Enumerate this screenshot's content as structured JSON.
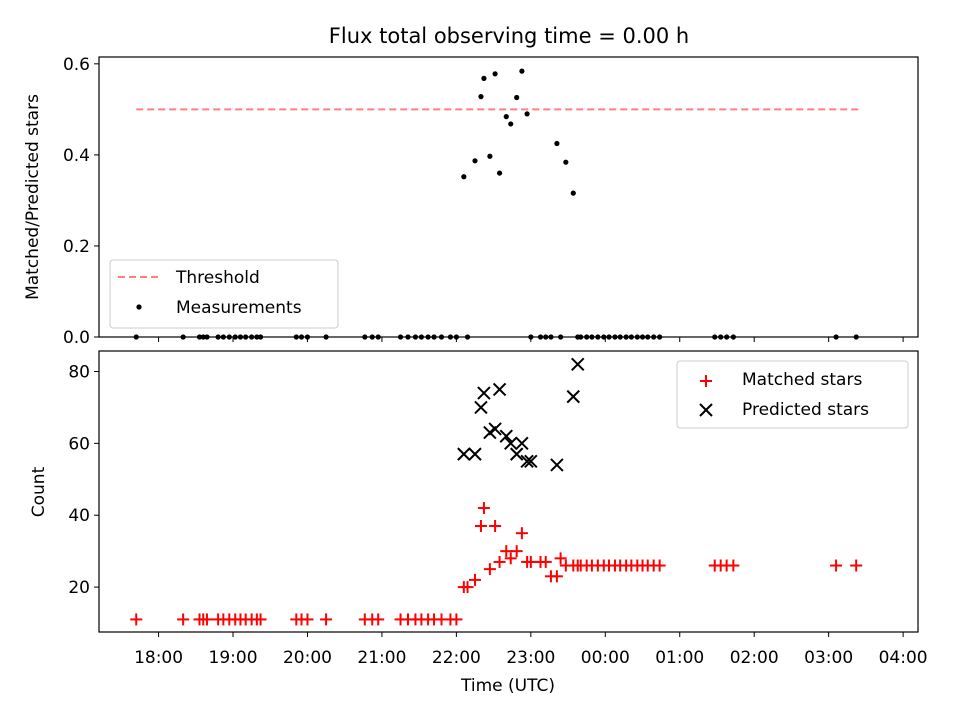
{
  "figure": {
    "title": "Flux total observing time = 0.00 h"
  },
  "chart_data": [
    {
      "type": "scatter",
      "title": "Flux total observing time = 0.00 h",
      "xlabel": "",
      "ylabel": "Matched/Predicted stars",
      "xlim": [
        -0.55,
        10.45
      ],
      "ylim": [
        0,
        0.615
      ],
      "yticks": [
        0.0,
        0.2,
        0.4,
        0.6
      ],
      "ytick_labels": [
        "0.0",
        "0.2",
        "0.4",
        "0.6"
      ],
      "legend": {
        "placement": "lower-left",
        "entries": [
          "Threshold",
          "Measurements"
        ]
      },
      "series": [
        {
          "name": "Threshold",
          "kind": "dashed-line",
          "color": "#ff7f7f",
          "x": [
            -0.05,
            9.65
          ],
          "y": [
            0.5,
            0.5
          ]
        },
        {
          "name": "Measurements",
          "kind": "dot",
          "color": "#000000",
          "x": [
            -0.05,
            0.58,
            0.8,
            0.85,
            0.9,
            1.05,
            1.12,
            1.2,
            1.28,
            1.35,
            1.42,
            1.5,
            1.57,
            1.62,
            2.1,
            2.17,
            2.25,
            2.5,
            3.02,
            3.12,
            3.2,
            3.5,
            3.6,
            3.7,
            3.78,
            3.87,
            3.95,
            4.05,
            4.17,
            4.25,
            4.4,
            4.35,
            4.5,
            4.58,
            4.62,
            4.7,
            4.77,
            4.83,
            4.92,
            4.98,
            5.06,
            5.13,
            5.2,
            5.25,
            5.38,
            5.45,
            5.52,
            5.6,
            5.65,
            5.72,
            5.82,
            5.88,
            5.92,
            6.0,
            6.07,
            6.15,
            6.23,
            6.3,
            6.38,
            6.45,
            6.53,
            6.6,
            6.68,
            6.75,
            6.82,
            6.9,
            6.98,
            7.72,
            7.8,
            7.88,
            7.97,
            9.35,
            9.62
          ],
          "y": [
            0,
            0,
            0,
            0,
            0,
            0,
            0,
            0,
            0,
            0,
            0,
            0,
            0,
            0,
            0,
            0,
            0,
            0,
            0,
            0,
            0,
            0,
            0,
            0,
            0,
            0,
            0,
            0,
            0,
            0,
            0,
            0.352,
            0.387,
            0.528,
            0.568,
            0.397,
            0.578,
            0.36,
            0.484,
            0.468,
            0.526,
            0.584,
            0.49,
            0,
            0,
            0,
            0,
            0.425,
            0,
            0.384,
            0.316,
            0,
            0,
            0,
            0,
            0,
            0,
            0,
            0,
            0,
            0,
            0,
            0,
            0,
            0,
            0,
            0,
            0,
            0,
            0,
            0,
            0,
            0
          ]
        }
      ]
    },
    {
      "type": "scatter",
      "title": "",
      "xlabel": "Time (UTC)",
      "ylabel": "Count",
      "xlim": [
        -0.55,
        10.45
      ],
      "ylim": [
        7.5,
        85.7
      ],
      "xticks": [
        0.25,
        1.25,
        2.25,
        3.25,
        4.25,
        5.25,
        6.25,
        7.25,
        8.25,
        9.25,
        10.25
      ],
      "xtick_labels": [
        "18:00",
        "19:00",
        "20:00",
        "21:00",
        "22:00",
        "23:00",
        "00:00",
        "01:00",
        "02:00",
        "03:00",
        "04:00"
      ],
      "yticks": [
        20,
        40,
        60,
        80
      ],
      "ytick_labels": [
        "20",
        "40",
        "60",
        "80"
      ],
      "legend": {
        "placement": "upper-right",
        "entries": [
          "Matched stars",
          "Predicted stars"
        ]
      },
      "series": [
        {
          "name": "Matched stars",
          "kind": "plus",
          "color": "#ff0000",
          "x": [
            -0.05,
            0.58,
            0.8,
            0.85,
            0.9,
            1.05,
            1.12,
            1.2,
            1.28,
            1.35,
            1.42,
            1.5,
            1.57,
            1.62,
            2.1,
            2.17,
            2.25,
            2.5,
            3.02,
            3.12,
            3.2,
            3.5,
            3.6,
            3.7,
            3.78,
            3.87,
            3.95,
            4.05,
            4.17,
            4.25,
            4.35,
            4.4,
            4.5,
            4.58,
            4.62,
            4.7,
            4.77,
            4.83,
            4.92,
            4.98,
            5.06,
            5.13,
            5.2,
            5.25,
            5.38,
            5.45,
            5.52,
            5.6,
            5.65,
            5.72,
            5.82,
            5.88,
            5.92,
            6.0,
            6.07,
            6.15,
            6.23,
            6.3,
            6.38,
            6.45,
            6.53,
            6.6,
            6.68,
            6.75,
            6.82,
            6.9,
            6.98,
            7.72,
            7.8,
            7.88,
            7.97,
            9.35,
            9.62
          ],
          "y": [
            11,
            11,
            11,
            11,
            11,
            11,
            11,
            11,
            11,
            11,
            11,
            11,
            11,
            11,
            11,
            11,
            11,
            11,
            11,
            11,
            11,
            11,
            11,
            11,
            11,
            11,
            11,
            11,
            11,
            11,
            20,
            20,
            22,
            37,
            42,
            25,
            37,
            27,
            30,
            28,
            30,
            35,
            27,
            27,
            27,
            27,
            23,
            23,
            28,
            26,
            26,
            26,
            26,
            26,
            26,
            26,
            26,
            26,
            26,
            26,
            26,
            26,
            26,
            26,
            26,
            26,
            26,
            26,
            26,
            26,
            26,
            26,
            26
          ]
        },
        {
          "name": "Predicted stars",
          "kind": "x",
          "color": "#000000",
          "x": [
            4.35,
            4.5,
            4.58,
            4.62,
            4.7,
            4.77,
            4.83,
            4.92,
            4.98,
            5.06,
            5.13,
            5.2,
            5.25,
            5.6,
            5.82,
            5.88
          ],
          "y": [
            57,
            57,
            70,
            74,
            63,
            64,
            75,
            62,
            60,
            57,
            60,
            55,
            55,
            54,
            73,
            82
          ]
        }
      ]
    }
  ]
}
